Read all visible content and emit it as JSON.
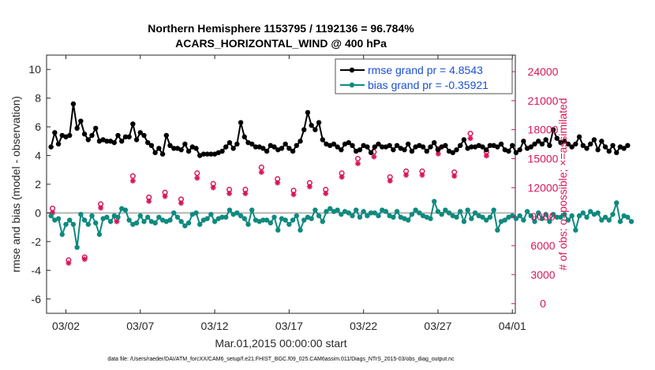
{
  "chart_data": {
    "type": "line",
    "title_line1": "Northern Hemisphere 1153795 / 1192136 = 96.784%",
    "title_line2": "ACARS_HORIZONTAL_WIND @ 400 hPa",
    "ylabel_left": "rmse and bias (model - observation)",
    "ylabel_right": "# of obs: o=possible; ×=assimilated",
    "xlabel": "Mar.01,2015 00:00:00 start",
    "footer": "data file: /Users/raeder/DAI/ATM_forcXX/CAM6_setup/f.e21.FHIST_BGC.f09_025.CAM6assim.011/Diags_NTrS_2015-03/obs_diag_output.nc",
    "legend_rmse": "rmse grand pr = 4.8543",
    "legend_bias": "bias grand pr = -0.35921",
    "ylim_left": [
      -7,
      11
    ],
    "ylim_right": [
      -1000,
      25714
    ],
    "xlim_days": [
      -0.3,
      31.2
    ],
    "left_ticks": [
      -6,
      -4,
      -2,
      0,
      2,
      4,
      6,
      8,
      10
    ],
    "right_ticks": [
      0,
      3000,
      6000,
      9000,
      12000,
      15000,
      18000,
      21000,
      24000
    ],
    "x_ticks": [
      {
        "day": 1,
        "label": "03/02"
      },
      {
        "day": 6,
        "label": "03/07"
      },
      {
        "day": 11,
        "label": "03/12"
      },
      {
        "day": 16,
        "label": "03/17"
      },
      {
        "day": 21,
        "label": "03/22"
      },
      {
        "day": 26,
        "label": "03/27"
      },
      {
        "day": 31,
        "label": "04/01"
      }
    ],
    "zero_line": 0,
    "colors": {
      "rmse": "#000000",
      "bias": "#0f8a7f",
      "obs": "#d6165b",
      "zero": "#b4b4b4",
      "legend_text": "#1a4fd6"
    },
    "x_step_days": 0.25,
    "x_start_day": 0,
    "rmse": [
      4.6,
      5.6,
      4.8,
      5.4,
      5.3,
      5.4,
      7.6,
      5.9,
      6.4,
      5.5,
      5.1,
      5.4,
      5.9,
      5.0,
      5.1,
      5.0,
      5.0,
      4.9,
      5.4,
      5.0,
      5.3,
      5.3,
      6.2,
      5.1,
      5.6,
      5.4,
      4.9,
      4.7,
      4.2,
      4.5,
      4.1,
      5.4,
      4.7,
      4.5,
      4.5,
      4.4,
      4.8,
      4.3,
      4.6,
      4.5,
      4.0,
      4.1,
      4.1,
      4.1,
      4.1,
      4.2,
      4.3,
      4.6,
      4.9,
      4.5,
      4.8,
      6.3,
      5.3,
      4.9,
      4.8,
      4.6,
      4.6,
      4.5,
      4.3,
      4.7,
      4.6,
      4.4,
      4.5,
      4.8,
      4.5,
      4.3,
      4.7,
      5.0,
      5.8,
      7.0,
      6.1,
      5.8,
      6.3,
      5.1,
      4.8,
      4.7,
      4.8,
      4.6,
      4.4,
      4.8,
      4.9,
      4.7,
      4.3,
      4.4,
      4.7,
      4.6,
      4.2,
      4.6,
      4.8,
      4.6,
      4.6,
      4.7,
      4.4,
      4.7,
      4.5,
      4.4,
      4.8,
      4.3,
      4.6,
      4.7,
      4.6,
      4.3,
      4.6,
      4.9,
      4.4,
      4.6,
      4.7,
      4.3,
      4.2,
      4.4,
      4.7,
      5.1,
      4.5,
      4.6,
      4.6,
      4.7,
      4.6,
      4.4,
      4.7,
      4.7,
      4.6,
      4.8,
      4.4,
      4.3,
      4.7,
      4.2,
      4.4,
      5.0,
      4.5,
      4.6,
      4.8,
      5.0,
      4.8,
      5.1,
      4.7,
      5.8,
      5.2,
      4.9,
      5.0,
      4.8,
      4.6,
      4.8,
      5.3,
      4.7,
      4.5,
      4.8,
      5.1,
      4.4,
      5.0,
      4.6,
      4.3,
      4.7,
      4.2,
      4.6,
      4.5,
      4.7
    ],
    "bias": [
      -0.2,
      -0.5,
      -0.4,
      -1.5,
      -0.8,
      -0.5,
      -0.8,
      -2.4,
      -0.1,
      -0.5,
      -0.8,
      -0.2,
      -0.7,
      -1.5,
      -0.4,
      -0.3,
      -0.6,
      -0.2,
      -0.3,
      0.3,
      0.2,
      -0.5,
      -0.8,
      -0.7,
      -0.2,
      -0.6,
      -0.3,
      -0.6,
      -0.7,
      -0.3,
      -0.5,
      -0.6,
      -0.5,
      0.0,
      -0.3,
      -0.6,
      -0.9,
      -0.7,
      -0.1,
      0.0,
      -0.8,
      -0.5,
      -0.4,
      -0.1,
      -0.6,
      -0.4,
      -0.3,
      -0.3,
      0.2,
      -0.1,
      0.0,
      -0.2,
      -0.4,
      -0.8,
      0.2,
      -0.5,
      -0.6,
      -0.5,
      -0.5,
      -0.7,
      -0.3,
      -1.2,
      -0.4,
      -0.5,
      -0.8,
      -0.5,
      -0.2,
      -1.2,
      -0.5,
      -0.3,
      -0.4,
      0.2,
      -0.2,
      -0.6,
      0.1,
      0.3,
      0.1,
      0.2,
      -0.1,
      0.1,
      0.0,
      -0.2,
      0.2,
      -0.3,
      0.1,
      -0.2,
      0.0,
      0.0,
      -0.2,
      0.2,
      0.1,
      -0.2,
      -0.3,
      0.1,
      -0.3,
      -0.4,
      -0.5,
      -0.1,
      0.2,
      0.0,
      -0.2,
      -0.3,
      -0.4,
      0.8,
      0.1,
      -0.1,
      0.2,
      0.0,
      -0.2,
      -0.3,
      0.1,
      -0.6,
      0.2,
      -0.4,
      0.0,
      -0.2,
      -0.3,
      -0.5,
      -0.3,
      0.2,
      -1.2,
      -0.6,
      -0.5,
      -0.3,
      -0.2,
      -0.4,
      -0.2,
      -0.5,
      0.1,
      -0.2,
      -0.6,
      0.0,
      -0.4,
      -0.1,
      -0.6,
      -0.1,
      -0.3,
      -0.3,
      -0.1,
      -0.5,
      -0.2,
      -1.2,
      -0.2,
      0.0,
      -0.3,
      0.1,
      -0.1,
      0.0,
      -0.5,
      -0.3,
      -0.5,
      -0.1,
      0.7,
      -0.6,
      -0.2,
      -0.3,
      -0.6
    ],
    "obs_possible": [
      9850,
      4500,
      4800,
      10300,
      8800,
      13200,
      11000,
      11500,
      10800,
      13500,
      12400,
      11800,
      11800,
      14100,
      12900,
      11700,
      12500,
      11800,
      13500,
      15000,
      15700,
      13100,
      13700,
      13700,
      16000,
      13600,
      17600,
      15700
    ],
    "obs_assimilated": [
      9400,
      4200,
      4600,
      9900,
      8500,
      12700,
      10600,
      11100,
      10400,
      13000,
      12000,
      11400,
      11400,
      13600,
      12500,
      11300,
      12100,
      11400,
      13100,
      14500,
      15200,
      12700,
      13300,
      13300,
      15500,
      13200,
      17100,
      15300
    ]
  }
}
